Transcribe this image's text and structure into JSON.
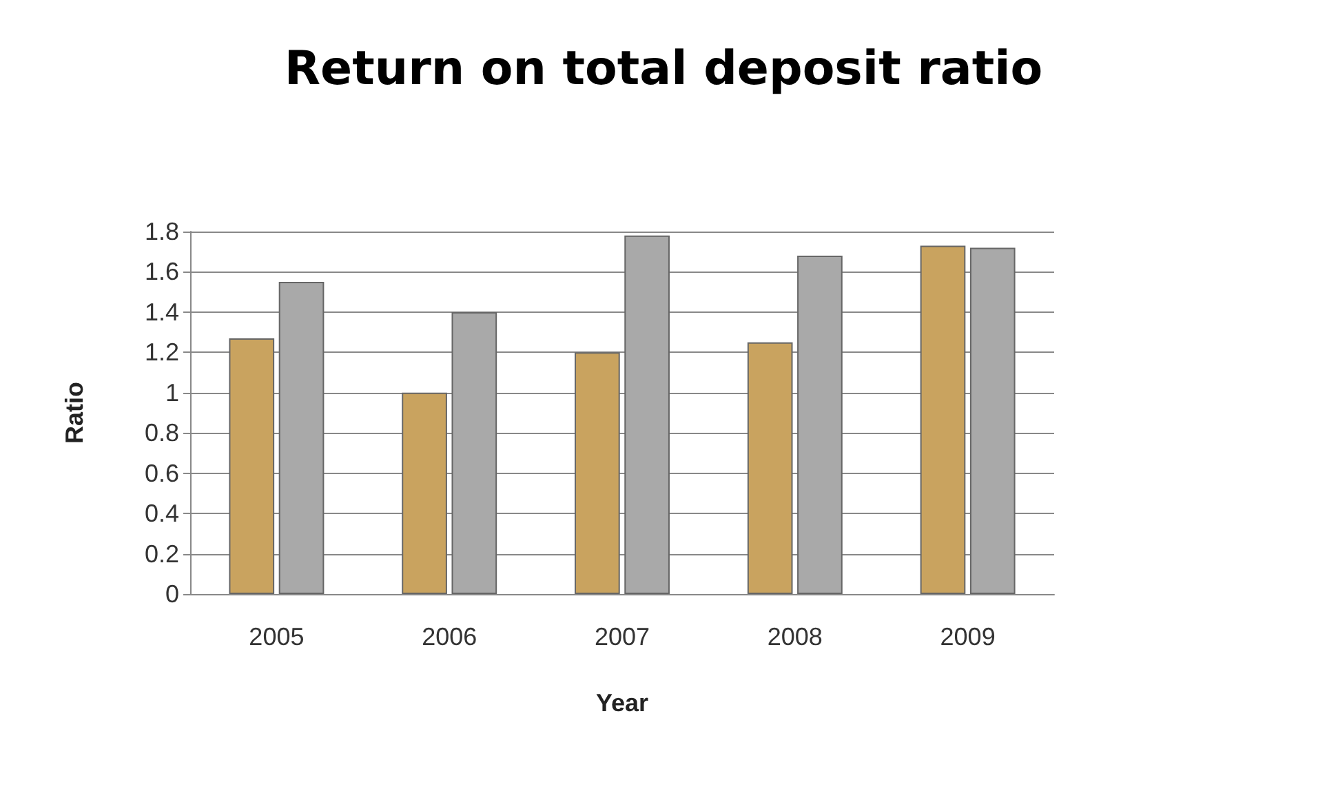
{
  "chart_data": {
    "type": "bar",
    "title": "Return on total deposit ratio",
    "xlabel": "Year",
    "ylabel": "Ratio",
    "categories": [
      "2005",
      "2006",
      "2007",
      "2008",
      "2009"
    ],
    "series": [
      {
        "color": "#c9a35f",
        "values": [
          1.27,
          1.0,
          1.2,
          1.25,
          1.73
        ]
      },
      {
        "color": "#a9a9a9",
        "values": [
          1.55,
          1.4,
          1.78,
          1.68,
          1.72
        ]
      }
    ],
    "ylim": [
      0,
      1.8
    ],
    "yticks": [
      0,
      0.2,
      0.4,
      0.6,
      0.8,
      1,
      1.2,
      1.4,
      1.6,
      1.8
    ],
    "grid": "y"
  }
}
